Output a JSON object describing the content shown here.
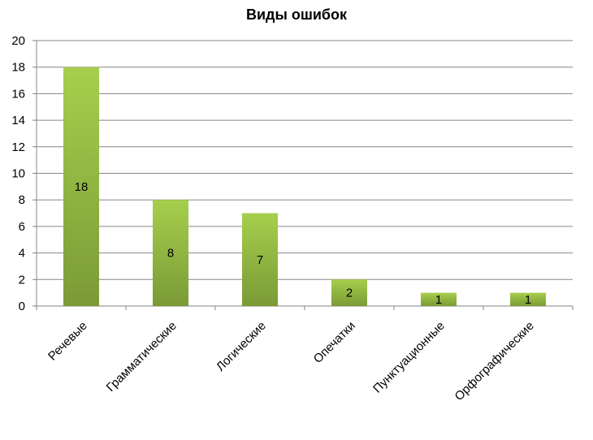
{
  "chart_data": {
    "type": "bar",
    "title": "Виды ошибок",
    "xlabel": "",
    "ylabel": "",
    "categories": [
      "Речевые",
      "Грамматические",
      "Логические",
      "Опечатки",
      "Пунктуационные",
      "Орфографические"
    ],
    "values": [
      18,
      8,
      7,
      2,
      1,
      1
    ],
    "ylim": [
      0,
      20
    ],
    "yticks": [
      0,
      2,
      4,
      6,
      8,
      10,
      12,
      14,
      16,
      18,
      20
    ],
    "grid": true,
    "legend": "none",
    "bar_color_top": "#a6cf4d",
    "bar_color_bottom": "#7b9a36",
    "data_labels": true
  }
}
